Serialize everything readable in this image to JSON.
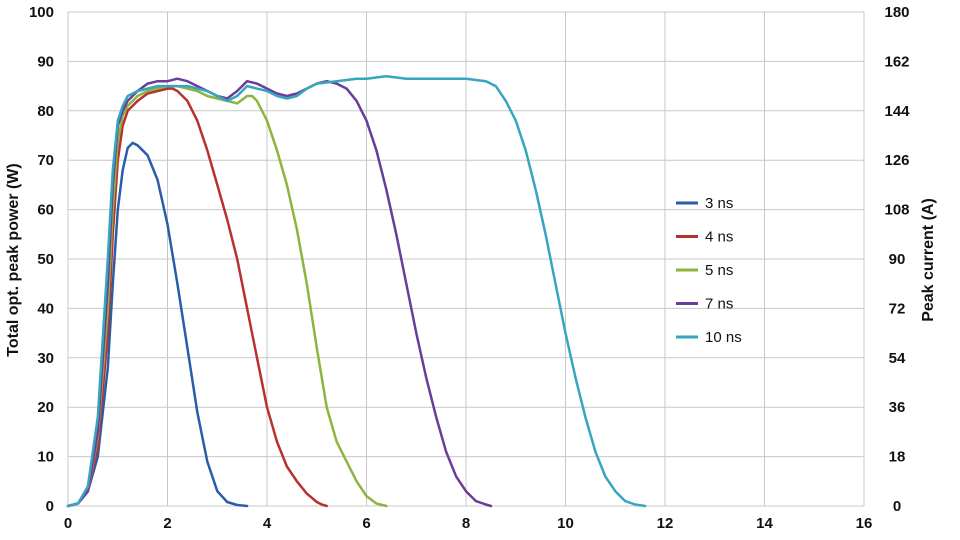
{
  "chart_data": {
    "type": "line",
    "title": "",
    "xlabel": "",
    "ylabel": "Total opt. peak power (W)",
    "y2label": "Peak current (A)",
    "xlim": [
      0,
      16
    ],
    "ylim": [
      0,
      100
    ],
    "y2lim": [
      0,
      180
    ],
    "xticks": [
      "0",
      "2",
      "4",
      "6",
      "8",
      "10",
      "12",
      "14",
      "16"
    ],
    "yticks": [
      "0",
      "10",
      "20",
      "30",
      "40",
      "50",
      "60",
      "70",
      "80",
      "90",
      "100"
    ],
    "y2ticks": [
      "0",
      "18",
      "36",
      "54",
      "72",
      "90",
      "108",
      "126",
      "144",
      "162",
      "180"
    ],
    "grid": true,
    "legend_position": "right-center",
    "series": [
      {
        "name": "3 ns",
        "color": "#2a5caa",
        "points": [
          [
            0,
            0
          ],
          [
            0.2,
            0.5
          ],
          [
            0.4,
            3
          ],
          [
            0.6,
            10
          ],
          [
            0.8,
            28
          ],
          [
            0.9,
            45
          ],
          [
            1.0,
            60
          ],
          [
            1.1,
            68
          ],
          [
            1.2,
            72.5
          ],
          [
            1.3,
            73.5
          ],
          [
            1.4,
            73
          ],
          [
            1.6,
            71
          ],
          [
            1.8,
            66
          ],
          [
            2.0,
            57
          ],
          [
            2.2,
            45
          ],
          [
            2.4,
            32
          ],
          [
            2.6,
            19
          ],
          [
            2.8,
            9
          ],
          [
            3.0,
            3
          ],
          [
            3.2,
            0.8
          ],
          [
            3.4,
            0.2
          ],
          [
            3.6,
            0
          ]
        ]
      },
      {
        "name": "4 ns",
        "color": "#b8312f",
        "points": [
          [
            0,
            0
          ],
          [
            0.2,
            0.5
          ],
          [
            0.4,
            3
          ],
          [
            0.6,
            12
          ],
          [
            0.8,
            35
          ],
          [
            0.9,
            55
          ],
          [
            1.0,
            70
          ],
          [
            1.1,
            77
          ],
          [
            1.2,
            80
          ],
          [
            1.4,
            82
          ],
          [
            1.6,
            83.5
          ],
          [
            1.8,
            84
          ],
          [
            2.0,
            84.5
          ],
          [
            2.1,
            84.5
          ],
          [
            2.2,
            84
          ],
          [
            2.4,
            82
          ],
          [
            2.6,
            78
          ],
          [
            2.8,
            72
          ],
          [
            3.0,
            65
          ],
          [
            3.2,
            58
          ],
          [
            3.4,
            50
          ],
          [
            3.6,
            40
          ],
          [
            3.8,
            30
          ],
          [
            4.0,
            20
          ],
          [
            4.2,
            13
          ],
          [
            4.4,
            8
          ],
          [
            4.6,
            5
          ],
          [
            4.8,
            2.5
          ],
          [
            5.0,
            0.8
          ],
          [
            5.1,
            0.3
          ],
          [
            5.2,
            0
          ]
        ]
      },
      {
        "name": "5 ns",
        "color": "#8db43d",
        "points": [
          [
            0,
            0
          ],
          [
            0.2,
            0.5
          ],
          [
            0.4,
            3
          ],
          [
            0.6,
            14
          ],
          [
            0.8,
            40
          ],
          [
            0.9,
            60
          ],
          [
            1.0,
            74
          ],
          [
            1.1,
            79
          ],
          [
            1.2,
            81
          ],
          [
            1.4,
            83
          ],
          [
            1.6,
            84
          ],
          [
            1.8,
            84.5
          ],
          [
            2.0,
            85
          ],
          [
            2.2,
            85
          ],
          [
            2.4,
            84.5
          ],
          [
            2.6,
            84
          ],
          [
            2.8,
            83
          ],
          [
            3.0,
            82.5
          ],
          [
            3.2,
            82
          ],
          [
            3.4,
            81.5
          ],
          [
            3.6,
            83
          ],
          [
            3.7,
            83
          ],
          [
            3.8,
            82
          ],
          [
            4.0,
            78
          ],
          [
            4.2,
            72
          ],
          [
            4.4,
            65
          ],
          [
            4.6,
            56
          ],
          [
            4.8,
            45
          ],
          [
            5.0,
            32
          ],
          [
            5.2,
            20
          ],
          [
            5.4,
            13
          ],
          [
            5.6,
            9
          ],
          [
            5.8,
            5
          ],
          [
            6.0,
            2
          ],
          [
            6.2,
            0.5
          ],
          [
            6.4,
            0
          ]
        ]
      },
      {
        "name": "7 ns",
        "color": "#6a3d9a",
        "points": [
          [
            0,
            0
          ],
          [
            0.2,
            0.5
          ],
          [
            0.4,
            3
          ],
          [
            0.6,
            15
          ],
          [
            0.8,
            45
          ],
          [
            0.9,
            65
          ],
          [
            1.0,
            77
          ],
          [
            1.1,
            80
          ],
          [
            1.2,
            82
          ],
          [
            1.4,
            84
          ],
          [
            1.6,
            85.5
          ],
          [
            1.8,
            86
          ],
          [
            2.0,
            86
          ],
          [
            2.2,
            86.5
          ],
          [
            2.4,
            86
          ],
          [
            2.6,
            85
          ],
          [
            2.8,
            84
          ],
          [
            3.0,
            83
          ],
          [
            3.2,
            82.5
          ],
          [
            3.4,
            84
          ],
          [
            3.6,
            86
          ],
          [
            3.8,
            85.5
          ],
          [
            4.0,
            84.5
          ],
          [
            4.2,
            83.5
          ],
          [
            4.4,
            83
          ],
          [
            4.6,
            83.5
          ],
          [
            4.8,
            84.5
          ],
          [
            5.0,
            85.5
          ],
          [
            5.2,
            86
          ],
          [
            5.4,
            85.5
          ],
          [
            5.6,
            84.5
          ],
          [
            5.8,
            82
          ],
          [
            6.0,
            78
          ],
          [
            6.2,
            72
          ],
          [
            6.4,
            64
          ],
          [
            6.6,
            55
          ],
          [
            6.8,
            45
          ],
          [
            7.0,
            35
          ],
          [
            7.2,
            26
          ],
          [
            7.4,
            18
          ],
          [
            7.6,
            11
          ],
          [
            7.8,
            6
          ],
          [
            8.0,
            3
          ],
          [
            8.2,
            1
          ],
          [
            8.4,
            0.3
          ],
          [
            8.5,
            0
          ]
        ]
      },
      {
        "name": "10 ns",
        "color": "#35a6be",
        "points": [
          [
            0,
            0
          ],
          [
            0.2,
            0.5
          ],
          [
            0.4,
            4
          ],
          [
            0.6,
            18
          ],
          [
            0.8,
            50
          ],
          [
            0.9,
            68
          ],
          [
            1.0,
            78
          ],
          [
            1.1,
            81
          ],
          [
            1.2,
            83
          ],
          [
            1.4,
            84
          ],
          [
            1.6,
            84.5
          ],
          [
            1.8,
            85
          ],
          [
            2.0,
            85
          ],
          [
            2.2,
            85
          ],
          [
            2.4,
            85
          ],
          [
            2.6,
            84.5
          ],
          [
            2.8,
            84
          ],
          [
            3.0,
            83
          ],
          [
            3.2,
            82
          ],
          [
            3.4,
            83
          ],
          [
            3.6,
            85
          ],
          [
            3.8,
            84.5
          ],
          [
            4.0,
            84
          ],
          [
            4.2,
            83
          ],
          [
            4.4,
            82.5
          ],
          [
            4.6,
            83
          ],
          [
            4.8,
            84.5
          ],
          [
            5.0,
            85.5
          ],
          [
            5.4,
            86
          ],
          [
            5.8,
            86.5
          ],
          [
            6.0,
            86.5
          ],
          [
            6.4,
            87
          ],
          [
            6.8,
            86.5
          ],
          [
            7.2,
            86.5
          ],
          [
            7.6,
            86.5
          ],
          [
            8.0,
            86.5
          ],
          [
            8.4,
            86
          ],
          [
            8.6,
            85
          ],
          [
            8.8,
            82
          ],
          [
            9.0,
            78
          ],
          [
            9.2,
            72
          ],
          [
            9.4,
            64
          ],
          [
            9.6,
            55
          ],
          [
            9.8,
            45
          ],
          [
            10.0,
            35
          ],
          [
            10.2,
            26
          ],
          [
            10.4,
            18
          ],
          [
            10.6,
            11
          ],
          [
            10.8,
            6
          ],
          [
            11.0,
            3
          ],
          [
            11.2,
            1
          ],
          [
            11.4,
            0.3
          ],
          [
            11.6,
            0
          ]
        ]
      }
    ]
  }
}
